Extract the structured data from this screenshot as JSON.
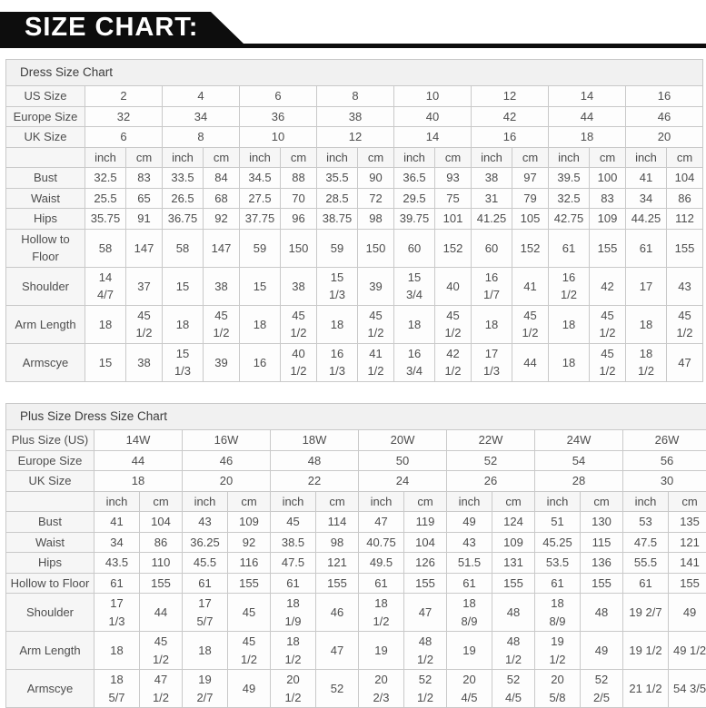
{
  "banner": {
    "title": "SIZE CHART:"
  },
  "colors": {
    "banner_bg": "#0d0d0d",
    "banner_text": "#ffffff",
    "table_border": "#c9c9c9",
    "label_bg": "#f6f6f6",
    "title_bg": "#f1f1f1",
    "cell_text": "#4d4d4d"
  },
  "tables": [
    {
      "title": "Dress Size Chart",
      "unit_labels": [
        "inch",
        "cm"
      ],
      "size_rows": [
        {
          "label": "US Size",
          "values": [
            "2",
            "4",
            "6",
            "8",
            "10",
            "12",
            "14",
            "16"
          ]
        },
        {
          "label": "Europe Size",
          "values": [
            "32",
            "34",
            "36",
            "38",
            "40",
            "42",
            "44",
            "46"
          ]
        },
        {
          "label": "UK Size",
          "values": [
            "6",
            "8",
            "10",
            "12",
            "14",
            "16",
            "18",
            "20"
          ]
        }
      ],
      "measure_rows": [
        {
          "label": "Bust",
          "values": [
            "32.5",
            "83",
            "33.5",
            "84",
            "34.5",
            "88",
            "35.5",
            "90",
            "36.5",
            "93",
            "38",
            "97",
            "39.5",
            "100",
            "41",
            "104"
          ]
        },
        {
          "label": "Waist",
          "values": [
            "25.5",
            "65",
            "26.5",
            "68",
            "27.5",
            "70",
            "28.5",
            "72",
            "29.5",
            "75",
            "31",
            "79",
            "32.5",
            "83",
            "34",
            "86"
          ]
        },
        {
          "label": "Hips",
          "values": [
            "35.75",
            "91",
            "36.75",
            "92",
            "37.75",
            "96",
            "38.75",
            "98",
            "39.75",
            "101",
            "41.25",
            "105",
            "42.75",
            "109",
            "44.25",
            "112"
          ]
        },
        {
          "label": "Hollow to Floor",
          "values": [
            "58",
            "147",
            "58",
            "147",
            "59",
            "150",
            "59",
            "150",
            "60",
            "152",
            "60",
            "152",
            "61",
            "155",
            "61",
            "155"
          ]
        },
        {
          "label": "Shoulder",
          "values": [
            "14\n4/7",
            "37",
            "15",
            "38",
            "15",
            "38",
            "15\n1/3",
            "39",
            "15\n3/4",
            "40",
            "16\n1/7",
            "41",
            "16\n1/2",
            "42",
            "17",
            "43"
          ]
        },
        {
          "label": "Arm Length",
          "values": [
            "18",
            "45\n1/2",
            "18",
            "45\n1/2",
            "18",
            "45\n1/2",
            "18",
            "45\n1/2",
            "18",
            "45\n1/2",
            "18",
            "45\n1/2",
            "18",
            "45\n1/2",
            "18",
            "45\n1/2"
          ]
        },
        {
          "label": "Armscye",
          "values": [
            "15",
            "38",
            "15\n1/3",
            "39",
            "16",
            "40\n1/2",
            "16\n1/3",
            "41\n1/2",
            "16\n3/4",
            "42\n1/2",
            "17\n1/3",
            "44",
            "18",
            "45\n1/2",
            "18\n1/2",
            "47"
          ]
        }
      ]
    },
    {
      "title": "Plus Size Dress Size Chart",
      "unit_labels": [
        "inch",
        "cm"
      ],
      "size_rows": [
        {
          "label": "Plus Size (US)",
          "values": [
            "14W",
            "16W",
            "18W",
            "20W",
            "22W",
            "24W",
            "26W"
          ]
        },
        {
          "label": "Europe Size",
          "values": [
            "44",
            "46",
            "48",
            "50",
            "52",
            "54",
            "56"
          ]
        },
        {
          "label": "UK Size",
          "values": [
            "18",
            "20",
            "22",
            "24",
            "26",
            "28",
            "30"
          ]
        }
      ],
      "measure_rows": [
        {
          "label": "Bust",
          "values": [
            "41",
            "104",
            "43",
            "109",
            "45",
            "114",
            "47",
            "119",
            "49",
            "124",
            "51",
            "130",
            "53",
            "135"
          ]
        },
        {
          "label": "Waist",
          "values": [
            "34",
            "86",
            "36.25",
            "92",
            "38.5",
            "98",
            "40.75",
            "104",
            "43",
            "109",
            "45.25",
            "115",
            "47.5",
            "121"
          ]
        },
        {
          "label": "Hips",
          "values": [
            "43.5",
            "110",
            "45.5",
            "116",
            "47.5",
            "121",
            "49.5",
            "126",
            "51.5",
            "131",
            "53.5",
            "136",
            "55.5",
            "141"
          ]
        },
        {
          "label": "Hollow to Floor",
          "values": [
            "61",
            "155",
            "61",
            "155",
            "61",
            "155",
            "61",
            "155",
            "61",
            "155",
            "61",
            "155",
            "61",
            "155"
          ]
        },
        {
          "label": "Shoulder",
          "values": [
            "17\n1/3",
            "44",
            "17\n5/7",
            "45",
            "18\n1/9",
            "46",
            "18\n1/2",
            "47",
            "18\n8/9",
            "48",
            "18\n8/9",
            "48",
            "19 2/7",
            "49"
          ]
        },
        {
          "label": "Arm Length",
          "values": [
            "18",
            "45\n1/2",
            "18",
            "45\n1/2",
            "18\n1/2",
            "47",
            "19",
            "48\n1/2",
            "19",
            "48\n1/2",
            "19\n1/2",
            "49",
            "19 1/2",
            "49 1/2"
          ]
        },
        {
          "label": "Armscye",
          "values": [
            "18\n5/7",
            "47\n1/2",
            "19\n2/7",
            "49",
            "20\n1/2",
            "52",
            "20\n2/3",
            "52\n1/2",
            "20\n4/5",
            "52\n4/5",
            "20\n5/8",
            "52\n2/5",
            "21 1/2",
            "54 3/5"
          ]
        }
      ]
    }
  ]
}
